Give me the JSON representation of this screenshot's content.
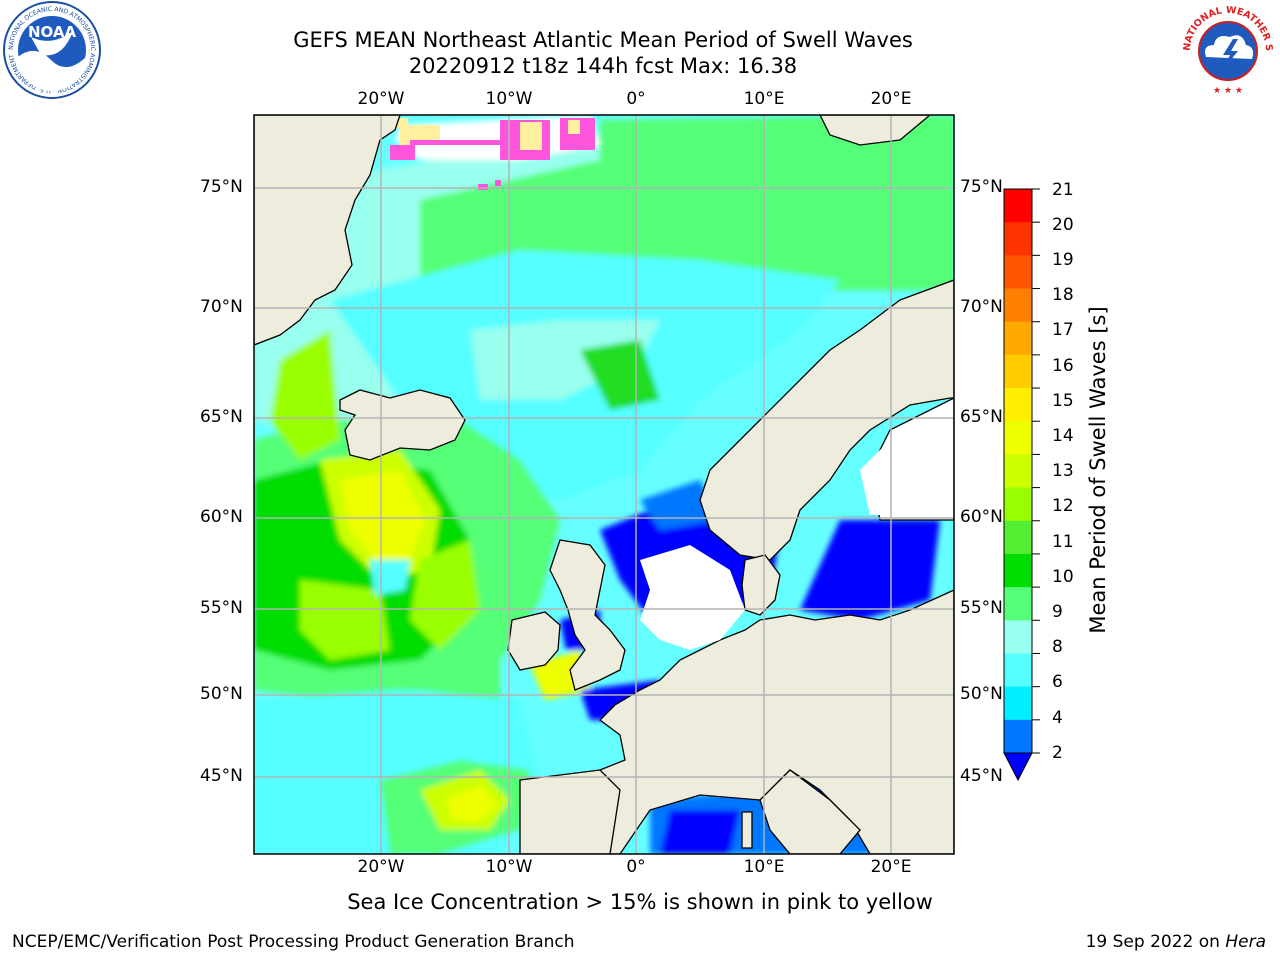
{
  "title": {
    "line1": "GEFS MEAN Northeast Atlantic Mean Period of Swell Waves",
    "line2": "20220912 t18z 144h fcst   Max: 16.38"
  },
  "map": {
    "lat_labels": [
      "75°N",
      "70°N",
      "65°N",
      "60°N",
      "55°N",
      "50°N",
      "45°N"
    ],
    "lon_labels": [
      "20°W",
      "10°W",
      "0°",
      "10°E",
      "20°E"
    ],
    "colors": {
      "land": "#eeecdc",
      "coast": "#000000",
      "grid": "#b4b4b4",
      "sea_ice": "#ff55dd",
      "sea_ice_edge": "#fff0a0"
    }
  },
  "colorbar": {
    "title": "Mean Period of Swell Waves [s]",
    "ticks": [
      "21",
      "20",
      "19",
      "18",
      "17",
      "16",
      "15",
      "14",
      "13",
      "12",
      "11",
      "10",
      "9",
      "8",
      "6",
      "4",
      "2"
    ],
    "colors_top_to_bottom": [
      "#ff0000",
      "#ff3300",
      "#ff5500",
      "#ff8000",
      "#ffaa00",
      "#ffcc00",
      "#ffee00",
      "#eeff00",
      "#ccff00",
      "#99ff00",
      "#55ee33",
      "#00dd00",
      "#55ff77",
      "#99ffee",
      "#55ffff",
      "#00eeff",
      "#0077ff"
    ],
    "under_color": "#0000ff"
  },
  "note": "Sea Ice Concentration > 15% is shown in pink to yellow",
  "footer": {
    "left": "NCEP/EMC/Verification Post Processing Product Generation Branch",
    "right_prefix": "19 Sep 2022 on ",
    "right_host": "Hera"
  },
  "logos": {
    "noaa_text": "NOAA",
    "noaa_ring_text": "NATIONAL OCEANIC AND ATMOSPHERIC ADMINISTRATION · U.S. DEPARTMENT OF COMMERCE",
    "nws_ring_text": "NATIONAL WEATHER SERVICE"
  }
}
